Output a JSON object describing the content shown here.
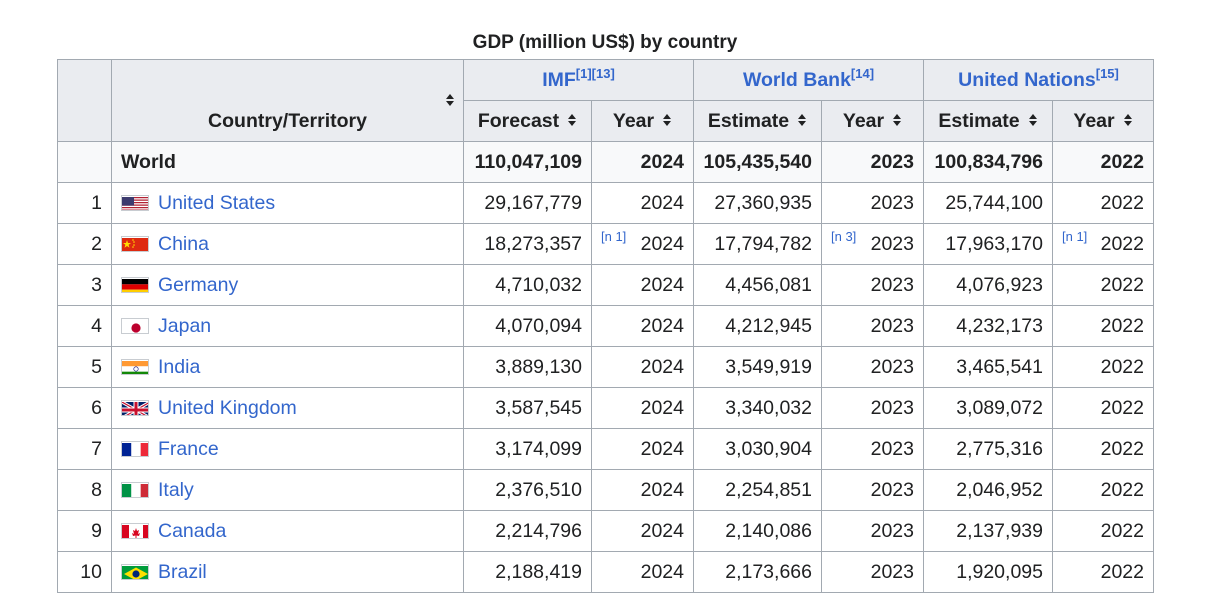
{
  "caption": "GDP (million US$) by country",
  "headers": {
    "country": "Country/Territory",
    "groups": [
      {
        "label": "IMF",
        "refs": "[1][13]"
      },
      {
        "label": "World Bank",
        "refs": "[14]"
      },
      {
        "label": "United Nations",
        "refs": "[15]"
      }
    ],
    "sub": [
      "Forecast",
      "Year",
      "Estimate",
      "Year",
      "Estimate",
      "Year"
    ]
  },
  "world": {
    "name": "World",
    "imf_value": "110,047,109",
    "imf_year": "2024",
    "wb_value": "105,435,540",
    "wb_year": "2023",
    "un_value": "100,834,796",
    "un_year": "2022"
  },
  "rows": [
    {
      "rank": "1",
      "name": "United States",
      "flag": "us-flag",
      "imf_value": "29,167,779",
      "imf_year": "2024",
      "imf_note": "",
      "wb_value": "27,360,935",
      "wb_year": "2023",
      "wb_note": "",
      "un_value": "25,744,100",
      "un_year": "2022",
      "un_note": ""
    },
    {
      "rank": "2",
      "name": "China",
      "flag": "china-flag",
      "imf_value": "18,273,357",
      "imf_year": "2024",
      "imf_note": "[n 1]",
      "wb_value": "17,794,782",
      "wb_year": "2023",
      "wb_note": "[n 3]",
      "un_value": "17,963,170",
      "un_year": "2022",
      "un_note": "[n 1]"
    },
    {
      "rank": "3",
      "name": "Germany",
      "flag": "germany-flag",
      "imf_value": "4,710,032",
      "imf_year": "2024",
      "imf_note": "",
      "wb_value": "4,456,081",
      "wb_year": "2023",
      "wb_note": "",
      "un_value": "4,076,923",
      "un_year": "2022",
      "un_note": ""
    },
    {
      "rank": "4",
      "name": "Japan",
      "flag": "japan-flag",
      "imf_value": "4,070,094",
      "imf_year": "2024",
      "imf_note": "",
      "wb_value": "4,212,945",
      "wb_year": "2023",
      "wb_note": "",
      "un_value": "4,232,173",
      "un_year": "2022",
      "un_note": ""
    },
    {
      "rank": "5",
      "name": "India",
      "flag": "india-flag",
      "imf_value": "3,889,130",
      "imf_year": "2024",
      "imf_note": "",
      "wb_value": "3,549,919",
      "wb_year": "2023",
      "wb_note": "",
      "un_value": "3,465,541",
      "un_year": "2022",
      "un_note": ""
    },
    {
      "rank": "6",
      "name": "United Kingdom",
      "flag": "uk-flag",
      "imf_value": "3,587,545",
      "imf_year": "2024",
      "imf_note": "",
      "wb_value": "3,340,032",
      "wb_year": "2023",
      "wb_note": "",
      "un_value": "3,089,072",
      "un_year": "2022",
      "un_note": ""
    },
    {
      "rank": "7",
      "name": "France",
      "flag": "france-flag",
      "imf_value": "3,174,099",
      "imf_year": "2024",
      "imf_note": "",
      "wb_value": "3,030,904",
      "wb_year": "2023",
      "wb_note": "",
      "un_value": "2,775,316",
      "un_year": "2022",
      "un_note": ""
    },
    {
      "rank": "8",
      "name": "Italy",
      "flag": "italy-flag",
      "imf_value": "2,376,510",
      "imf_year": "2024",
      "imf_note": "",
      "wb_value": "2,254,851",
      "wb_year": "2023",
      "wb_note": "",
      "un_value": "2,046,952",
      "un_year": "2022",
      "un_note": ""
    },
    {
      "rank": "9",
      "name": "Canada",
      "flag": "canada-flag",
      "imf_value": "2,214,796",
      "imf_year": "2024",
      "imf_note": "",
      "wb_value": "2,140,086",
      "wb_year": "2023",
      "wb_note": "",
      "un_value": "2,137,939",
      "un_year": "2022",
      "un_note": ""
    },
    {
      "rank": "10",
      "name": "Brazil",
      "flag": "brazil-flag",
      "imf_value": "2,188,419",
      "imf_year": "2024",
      "imf_note": "",
      "wb_value": "2,173,666",
      "wb_year": "2023",
      "wb_note": "",
      "un_value": "1,920,095",
      "un_year": "2022",
      "un_note": ""
    }
  ]
}
